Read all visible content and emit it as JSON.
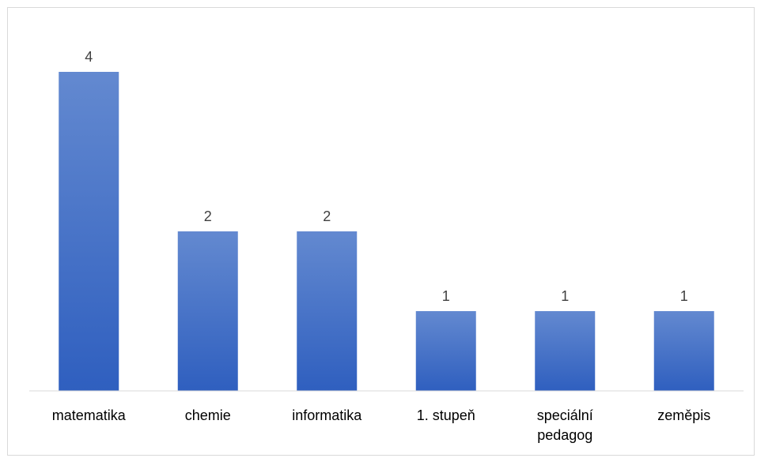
{
  "chart_data": {
    "type": "bar",
    "categories": [
      [
        "matematika"
      ],
      [
        "chemie"
      ],
      [
        "informatika"
      ],
      [
        "1. stupeň"
      ],
      [
        "speciální",
        "pedagog"
      ],
      [
        "zeměpis"
      ]
    ],
    "values": [
      4,
      2,
      2,
      1,
      1,
      1
    ],
    "title": "",
    "xlabel": "",
    "ylabel": "",
    "ylim": [
      0,
      4
    ],
    "data_labels": true,
    "grid": false,
    "legend": "none",
    "colors": {
      "bar_top": "#6389d0",
      "bar_bottom": "#2f5fbf",
      "axis": "#d9d9d9"
    }
  }
}
